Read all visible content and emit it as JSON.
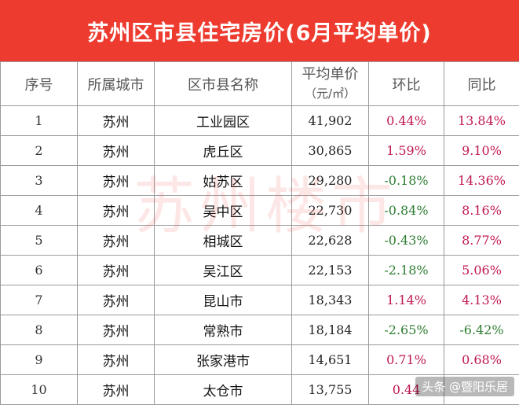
{
  "title": "苏州区市县住宅房价(6月平均单价)",
  "watermark": "苏州楼市",
  "credit": "头条 @暨阳乐居",
  "colors": {
    "title_bg": "#ee3b2f",
    "positive": "#c0184e",
    "negative": "#2e7d32"
  },
  "headers": {
    "index": "序号",
    "city": "所属城市",
    "district": "区市县名称",
    "price_line1": "平均单价",
    "price_line2": "（元/㎡）",
    "mom": "环比",
    "yoy": "同比"
  },
  "rows": [
    {
      "index": "1",
      "city": "苏州",
      "district": "工业园区",
      "price": "41,902",
      "mom": "0.44%",
      "yoy": "13.84%"
    },
    {
      "index": "2",
      "city": "苏州",
      "district": "虎丘区",
      "price": "30,865",
      "mom": "1.59%",
      "yoy": "9.10%"
    },
    {
      "index": "3",
      "city": "苏州",
      "district": "姑苏区",
      "price": "29,280",
      "mom": "-0.18%",
      "yoy": "14.36%"
    },
    {
      "index": "4",
      "city": "苏州",
      "district": "吴中区",
      "price": "22,730",
      "mom": "-0.84%",
      "yoy": "8.16%"
    },
    {
      "index": "5",
      "city": "苏州",
      "district": "相城区",
      "price": "22,628",
      "mom": "-0.43%",
      "yoy": "8.77%"
    },
    {
      "index": "6",
      "city": "苏州",
      "district": "吴江区",
      "price": "22,153",
      "mom": "-2.18%",
      "yoy": "5.06%"
    },
    {
      "index": "7",
      "city": "苏州",
      "district": "昆山市",
      "price": "18,343",
      "mom": "1.14%",
      "yoy": "4.13%"
    },
    {
      "index": "8",
      "city": "苏州",
      "district": "常熟市",
      "price": "18,184",
      "mom": "-2.65%",
      "yoy": "-6.42%"
    },
    {
      "index": "9",
      "city": "苏州",
      "district": "张家港市",
      "price": "14,651",
      "mom": "0.71%",
      "yoy": "0.68%"
    },
    {
      "index": "10",
      "city": "苏州",
      "district": "太仓市",
      "price": "13,755",
      "mom": "0.44",
      "yoy": ""
    }
  ]
}
